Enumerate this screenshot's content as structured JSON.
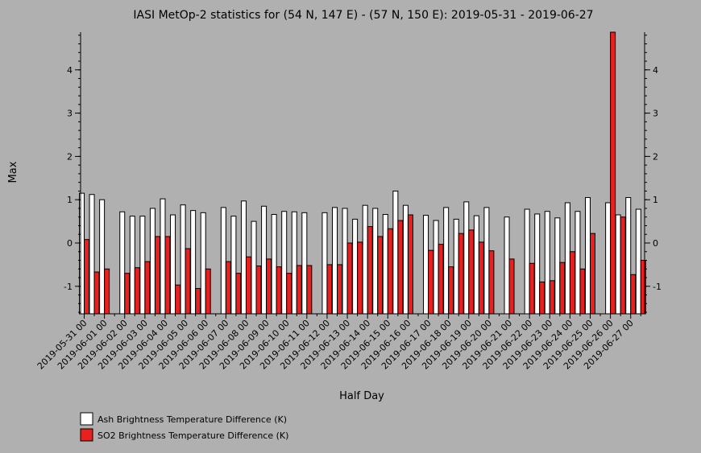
{
  "chart_data": {
    "type": "bar",
    "title": "IASI MetOp-2 statistics for (54 N, 147 E) - (57 N, 150 E): 2019-05-31 - 2019-06-27",
    "xlabel": "Half Day",
    "ylabel": "Max",
    "ylim": [
      -1.65,
      4.9
    ],
    "yticks": [
      -1,
      0,
      1,
      2,
      3,
      4
    ],
    "xlabels": [
      "2019-05-31 00",
      "2019-06-01 00",
      "2019-06-02 00",
      "2019-06-03 00",
      "2019-06-04 00",
      "2019-06-05 00",
      "2019-06-06 00",
      "2019-06-07 00",
      "2019-06-08 00",
      "2019-06-09 00",
      "2019-06-10 00",
      "2019-06-11 00",
      "2019-06-12 00",
      "2019-06-13 00",
      "2019-06-14 00",
      "2019-06-15 00",
      "2019-06-16 00",
      "2019-06-17 00",
      "2019-06-18 00",
      "2019-06-19 00",
      "2019-06-20 00",
      "2019-06-21 00",
      "2019-06-22 00",
      "2019-06-23 00",
      "2019-06-24 00",
      "2019-06-25 00",
      "2019-06-26 00",
      "2019-06-27 00"
    ],
    "grid": false,
    "legend_position": "bottom-left",
    "series": [
      {
        "name": "Ash Brightness Temperature Difference (K)",
        "color": "#ffffff",
        "values": [
          1.15,
          1.12,
          1.0,
          null,
          0.72,
          0.62,
          0.62,
          0.8,
          1.02,
          0.65,
          0.88,
          0.75,
          0.7,
          null,
          0.82,
          0.62,
          0.97,
          0.5,
          0.85,
          0.66,
          0.73,
          0.72,
          0.7,
          null,
          0.7,
          0.82,
          0.8,
          0.55,
          0.87,
          0.8,
          0.66,
          1.2,
          0.87,
          null,
          0.64,
          0.52,
          0.82,
          0.55,
          0.95,
          0.63,
          0.82,
          null,
          0.6,
          null,
          0.78,
          0.67,
          0.73,
          0.58,
          0.93,
          0.73,
          1.05,
          null,
          0.93,
          0.65,
          1.05,
          0.78
        ]
      },
      {
        "name": "SO2 Brightness Temperature Difference (K)",
        "color": "#e82020",
        "values": [
          0.08,
          -0.67,
          -0.6,
          null,
          -0.7,
          -0.57,
          -0.43,
          0.15,
          0.15,
          -0.97,
          -0.13,
          -1.05,
          -0.6,
          null,
          -0.43,
          -0.7,
          -0.32,
          -0.53,
          -0.37,
          -0.55,
          -0.7,
          -0.52,
          -0.52,
          null,
          -0.5,
          -0.5,
          0.0,
          0.02,
          0.38,
          0.15,
          0.33,
          0.52,
          0.65,
          null,
          -0.17,
          -0.03,
          -0.55,
          0.22,
          0.3,
          0.02,
          -0.18,
          null,
          -0.37,
          null,
          -0.47,
          -0.9,
          -0.87,
          -0.45,
          -0.2,
          -0.6,
          0.22,
          null,
          4.9,
          0.6,
          -0.73,
          -0.4
        ]
      }
    ]
  }
}
